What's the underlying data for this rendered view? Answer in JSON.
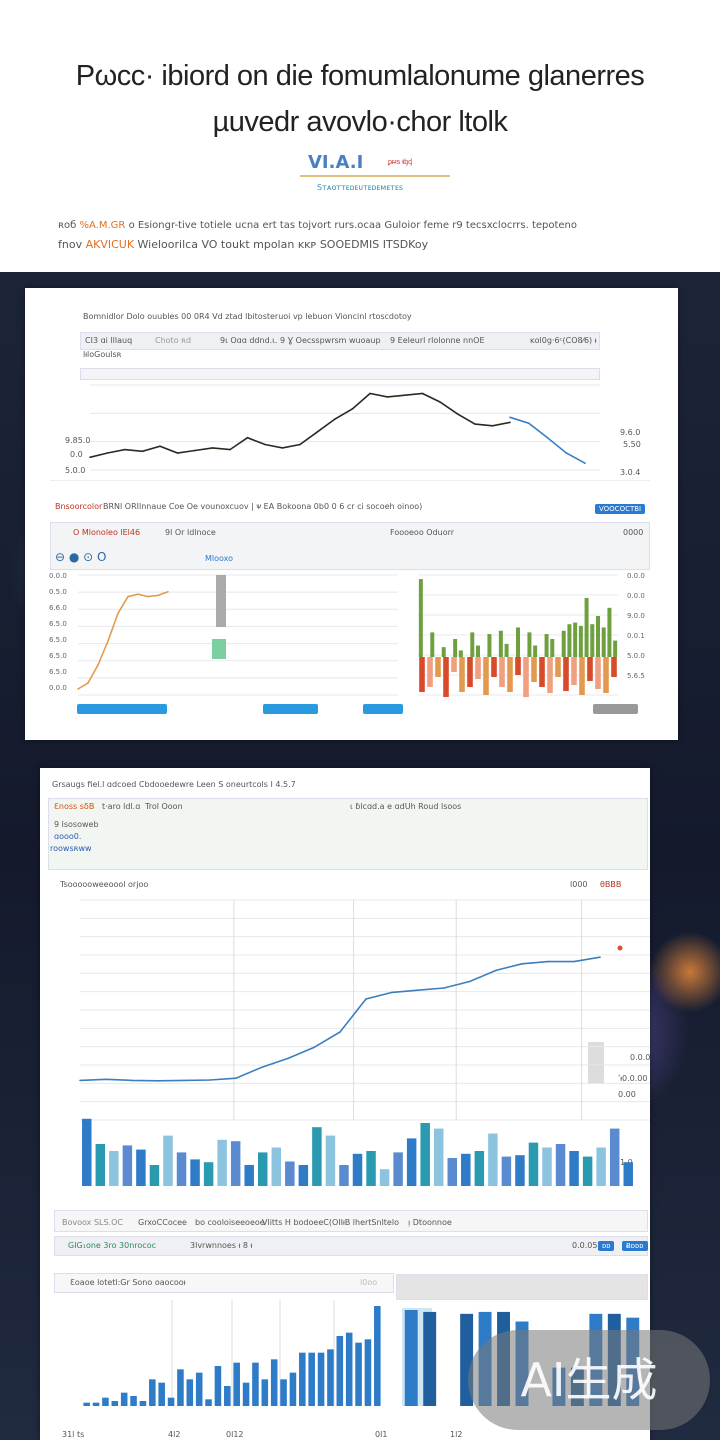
{
  "header": {
    "title_line1": "Pωcc· ibiord on die fomumlalonume glanerres",
    "title_line2": "µuvedr avovlo·chor ltolk",
    "logo_text": "VI.A.I",
    "logo_side": "ᵱᵲᵳᵴ ᵵᶀᶁ",
    "subtitle": "Sᴛᴀᴏᴛᴛᴇᴅᴇᴜᴛᴇᴅᴇᴍᴇᴛᴇs",
    "desc_line1_accent": "%A.M.GR",
    "desc_line1_prefix": "ʀoб",
    "desc_line1": "o Esiongr-tive totiele ucna ert tas tojvort rurs.ocaa Guloior feme r9 tecsxclocrrs. tepoteno",
    "desc_line2_prefix": "fnov",
    "desc_line2_accent": "AKVICUK",
    "desc_line2": "Wieloorilca VO toukt mpolan ᴋᴋᴘ SOOEDMIS ITSDKoy"
  },
  "panel1": {
    "heading": "Bomnidlor Dolo ouubles 00 0R4 Vd ztad lbitosteruoi vp lebuon Vioncinl rtoscdotoy",
    "tab1": "CI3 ɑi lllauq",
    "tab2": "Choto ʀd",
    "toolbar_mid": "9ι Oɑɑ ddnd.ι. 9 Ɣ Oecsspwrsm wuoaup",
    "toolbar_right": "9 Eeleurl rlolonne nnOE",
    "legend_right": "ᴋol0g·6ᶜ(CO8⁄6) ᵼ",
    "row_label": "lᵼloGoulsʀ",
    "right_axis": [
      "9.6.0",
      "5.50",
      "3.0.4"
    ],
    "left_axis": [
      "9.85.0",
      "0.0",
      "5.0.0"
    ],
    "section_title": "Bnsoorcolor",
    "section_text": "BRNl ORIlnnaue Coe Oe vounoxcuov | ᴪ EA Bokoona 0b0 0 6 cr ci socoeh oinoo)",
    "section_btn": "VOOCOCTBI",
    "tab_active": "O Mlonoleo lEl46",
    "tab_other": "9l Or ldlnoce",
    "center_label": "Foooeoo Oduorr",
    "right_label": "0000",
    "legend_link": "Mlooxo",
    "left_ticks": [
      "0.0.0",
      "0.5.0",
      "6.6.0",
      "6.5.0",
      "6.5.0",
      "6.5.0",
      "6.5.0",
      "0.0.0"
    ],
    "right_ticks": [
      "0.0.0",
      "0.0.0",
      "9.0.0",
      "0.0.1",
      "5.0.0",
      "5.6.5"
    ]
  },
  "panel2": {
    "heading": "Grsaugs fiel.l ɑdcoed Cbdooedewre Leen S oneurtcols I 4.5.7",
    "tab1": "Ɛnoss sδB",
    "tab1_extra": "t·aro ldl.ɑ",
    "tab2": "Trol Ooon",
    "tab_mid": "ɩ ɓlᴄɑd.a e ɑdUh Roud lsoos",
    "row_labels": [
      "9 lsosoweb",
      "ɑooo0.",
      "roowsʀww"
    ],
    "chart_title": "Tsoooooweeoool orjoo",
    "chart_right": "l000",
    "chart_badge": "θBBB",
    "side_labels": [
      "0.0.0",
      "ʹᵼ0.0.00",
      "0.00",
      "1.0"
    ],
    "footer_tabs": [
      "Bovoox SLS.OC",
      "GrxoCCocee",
      "bo cooloiseeoeoe",
      "Vlitts H bodoeeC(OIIᵼB lhertSnltelo",
      "ᴉ Dtoonnoe"
    ],
    "sub_toolbar": "GIG₁one  3ro 30nrococ",
    "sub_mid": "3lvrwnnoes  ᵼ 8 ᵼ",
    "sub_right": "0.0.05",
    "btn1": "ᴅᴅ",
    "btn2": "Ƀᴅᴅᴅ",
    "mini_title": "Ɛoaoe lotetl:Gr Sono oaocooᵼ",
    "mini_right": "l0οo",
    "bottom_ticks": [
      "31l ts",
      "4l2",
      "0l12",
      "0l1",
      "1l2"
    ]
  },
  "watermark": "AI生成",
  "colors": {
    "line_dark": "#2a2a20",
    "line_blue": "#3a7fc0",
    "orange": "#e39a50",
    "green": "#6fa040",
    "red": "#d84a2a",
    "bar_blue": "#2e7bc8",
    "bar_teal": "#2a9ab0",
    "bar_light": "#8cc4e0"
  },
  "chart_data": [
    {
      "type": "line",
      "series": [
        {
          "values": [
            15,
            20,
            24,
            22,
            28,
            20,
            23,
            26,
            24,
            38,
            30,
            26,
            30,
            45,
            60,
            72,
            90,
            86,
            88,
            90,
            80,
            66,
            54,
            52,
            56
          ]
        },
        {
          "values": [
            62,
            55,
            38,
            20,
            8
          ]
        }
      ],
      "ylim": [
        0,
        100
      ],
      "grid": true
    },
    {
      "type": "line",
      "series": [
        {
          "values": [
            5,
            10,
            25,
            45,
            68,
            82,
            84,
            82,
            83,
            86
          ]
        }
      ],
      "ylim": [
        0,
        100
      ],
      "grid": true
    },
    {
      "type": "bar",
      "series": [
        {
          "values": [
            95,
            0,
            30,
            0,
            12,
            0,
            22,
            8,
            0,
            30,
            14,
            0,
            28,
            0,
            32,
            16,
            0,
            36,
            0,
            30,
            14,
            0,
            28,
            22,
            0,
            32,
            40,
            42,
            38,
            72,
            40,
            50,
            36,
            60,
            20
          ]
        },
        {
          "values": [
            -35,
            -30,
            -20,
            -40,
            -15,
            -35,
            -30,
            -22,
            -38,
            -20,
            -30,
            -35,
            -18,
            -40,
            -25,
            -30,
            -36,
            -20,
            -34,
            -28,
            -38,
            -24,
            -32,
            -36,
            -20
          ]
        }
      ],
      "grid": true
    },
    {
      "type": "line",
      "series": [
        {
          "values": [
            18,
            18.5,
            18,
            17.8,
            18,
            18.2,
            19,
            24,
            28,
            33,
            40,
            55,
            58,
            59,
            60,
            63,
            68,
            71,
            72,
            72,
            74
          ]
        }
      ],
      "ylim": [
        0,
        100
      ],
      "grid": true
    },
    {
      "type": "bar",
      "series": [
        {
          "values": [
            96,
            60,
            50,
            58,
            52,
            30,
            72,
            48,
            38,
            34,
            66,
            64,
            30,
            48,
            55,
            35,
            30,
            84,
            72,
            30,
            46,
            50,
            24,
            48,
            68,
            90,
            82,
            40,
            46,
            50,
            75,
            42,
            44,
            62,
            55,
            60,
            50,
            42,
            55,
            82,
            34
          ]
        }
      ],
      "ylim": [
        0,
        100
      ]
    },
    {
      "type": "bar",
      "series": [
        {
          "values": [
            2,
            2,
            5,
            3,
            8,
            6,
            3,
            16,
            14,
            5,
            22,
            16,
            20,
            4,
            24,
            12,
            26,
            14,
            26,
            16,
            28,
            16,
            20,
            32,
            32,
            32,
            34,
            42,
            44,
            38,
            40,
            60
          ]
        }
      ],
      "ylim": [
        0,
        60
      ]
    },
    {
      "type": "bar",
      "series": [
        {
          "values": [
            100,
            98,
            0,
            96,
            98,
            98,
            88,
            0,
            40,
            40,
            96,
            96,
            92
          ]
        }
      ],
      "ylim": [
        0,
        100
      ]
    }
  ]
}
